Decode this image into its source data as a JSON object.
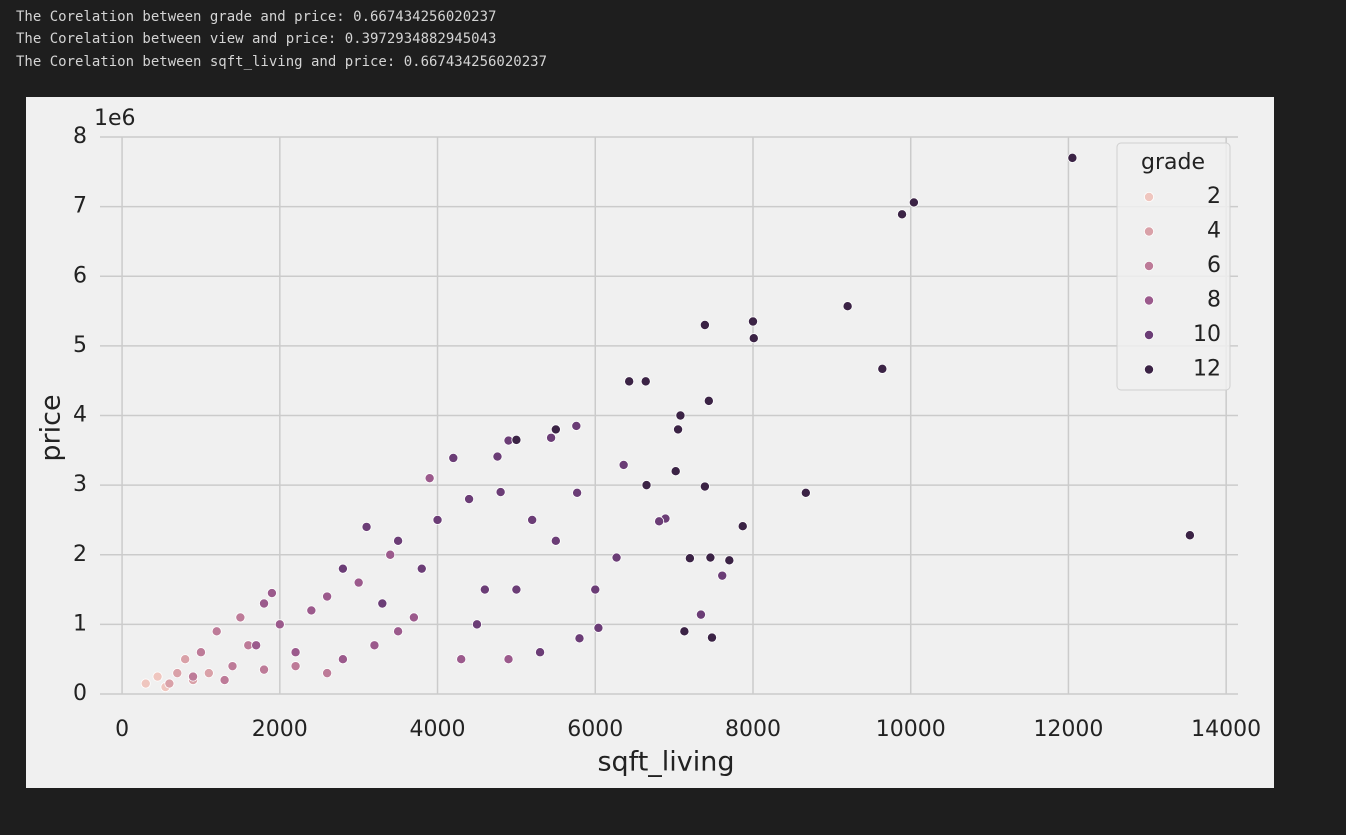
{
  "output_lines": [
    "The Corelation between grade and price: 0.667434256020237",
    "The Corelation between view and price: 0.3972934882945043",
    "The Corelation between sqft_living and price: 0.667434256020237"
  ],
  "chart_data": {
    "type": "scatter",
    "x_label": "sqft_living",
    "y_label": "price",
    "y_offset_label": "1e6",
    "legend_title": "grade",
    "legend": "upper right",
    "grid": true,
    "xlim": [
      -280,
      14150
    ],
    "ylim": [
      0,
      8000000
    ],
    "xticks": [
      0,
      2000,
      4000,
      6000,
      8000,
      10000,
      12000,
      14000
    ],
    "yticks": [
      {
        "value": 0,
        "label": "0"
      },
      {
        "value": 1000000,
        "label": "1"
      },
      {
        "value": 2000000,
        "label": "2"
      },
      {
        "value": 3000000,
        "label": "3"
      },
      {
        "value": 4000000,
        "label": "4"
      },
      {
        "value": 5000000,
        "label": "5"
      },
      {
        "value": 6000000,
        "label": "6"
      },
      {
        "value": 7000000,
        "label": "7"
      },
      {
        "value": 8000000,
        "label": "8"
      }
    ],
    "series": [
      {
        "name": "2",
        "color": "#efc6bf",
        "x": [
          300,
          450,
          550
        ],
        "values": [
          150000,
          250000,
          100000
        ]
      },
      {
        "name": "4",
        "color": "#d9a1a8",
        "x": [
          700,
          900,
          600,
          1100,
          800
        ],
        "values": [
          300000,
          200000,
          150000,
          300000,
          500000
        ]
      },
      {
        "name": "6",
        "color": "#bd7b98",
        "x": [
          1500,
          1200,
          1000,
          1400,
          1800,
          2200,
          900,
          1300,
          2600,
          1600
        ],
        "values": [
          1100000,
          900000,
          600000,
          400000,
          350000,
          400000,
          250000,
          200000,
          300000,
          700000
        ]
      },
      {
        "name": "8",
        "color": "#9b5a8c",
        "x": [
          3900,
          3400,
          3000,
          2600,
          2400,
          2000,
          1900,
          3500,
          4300,
          3200,
          2800,
          2200,
          1700,
          1800,
          4900,
          3700
        ],
        "values": [
          3100000,
          2000000,
          1600000,
          1400000,
          1200000,
          1000000,
          1450000,
          900000,
          500000,
          700000,
          500000,
          600000,
          700000,
          1300000,
          500000,
          1100000
        ]
      },
      {
        "name": "10",
        "color": "#6b3d76",
        "x": [
          5760,
          5440,
          4900,
          4760,
          4200,
          6360,
          6890,
          6810,
          7340,
          7610,
          5770,
          6270,
          5500,
          5200,
          4800,
          4400,
          4000,
          3500,
          3100,
          6000,
          5800,
          5000,
          4500,
          6040,
          3800,
          3300,
          2800,
          5300,
          4600
        ],
        "values": [
          3850000,
          3680000,
          3640000,
          3410000,
          3390000,
          3290000,
          2520000,
          2480000,
          1140000,
          1700000,
          2890000,
          1960000,
          2200000,
          2500000,
          2900000,
          2800000,
          2500000,
          2200000,
          2400000,
          1500000,
          800000,
          1500000,
          1000000,
          950000,
          1800000,
          1300000,
          1800000,
          600000,
          1500000
        ]
      },
      {
        "name": "12",
        "color": "#3b2345",
        "x": [
          12050,
          10040,
          9890,
          9200,
          9640,
          8000,
          8010,
          7390,
          13540,
          8670,
          7440,
          6640,
          6430,
          7080,
          7050,
          7390,
          7020,
          7870,
          7460,
          7200,
          7130,
          7480,
          7700,
          6650,
          5500,
          5000
        ],
        "values": [
          7700000,
          7060000,
          6890000,
          5570000,
          4670000,
          5350000,
          5110000,
          5300000,
          2280000,
          2890000,
          4210000,
          4490000,
          4490000,
          4000000,
          3800000,
          2980000,
          3200000,
          2410000,
          1960000,
          1950000,
          900000,
          810000,
          1920000,
          3000000,
          3800000,
          3650000
        ]
      }
    ]
  }
}
